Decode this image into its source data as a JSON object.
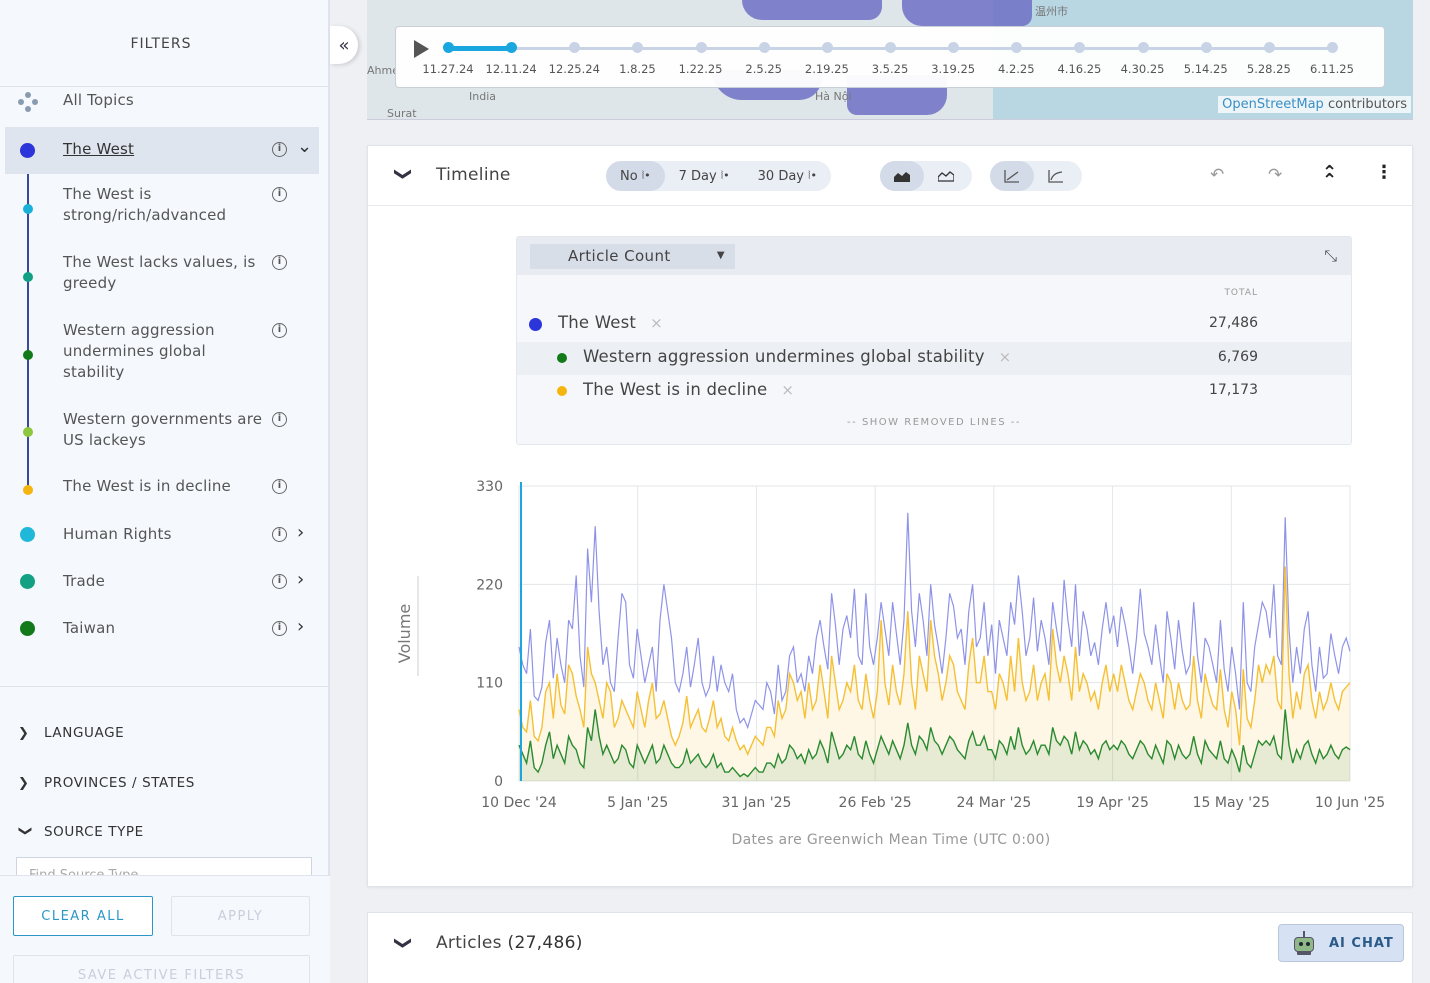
{
  "sidebar": {
    "title": "FILTERS",
    "collapse_icon": "«",
    "all_topics": "All Topics",
    "topics": [
      {
        "label": "The West",
        "color": "#2b35d9",
        "selected": true,
        "has_chevron": "down"
      },
      {
        "label": "The West is strong/rich/advanced",
        "color": "#1ab1d9",
        "sub": true
      },
      {
        "label": "The West lacks values, is greedy",
        "color": "#11a085",
        "sub": true
      },
      {
        "label": "Western aggression undermines global stability",
        "color": "#137a1a",
        "sub": true
      },
      {
        "label": "Western governments are US lackeys",
        "color": "#8dc63f",
        "sub": true
      },
      {
        "label": "The West is in decline",
        "color": "#f5b50f",
        "sub": true
      },
      {
        "label": "Human Rights",
        "color": "#1fb8d8",
        "has_chevron": "right"
      },
      {
        "label": "Trade",
        "color": "#13a083",
        "has_chevron": "right"
      },
      {
        "label": "Taiwan",
        "color": "#137a1a",
        "has_chevron": "right"
      }
    ],
    "info_glyph": "i",
    "sections": [
      {
        "label": "LANGUAGE",
        "expanded": false
      },
      {
        "label": "PROVINCES / STATES",
        "expanded": false
      },
      {
        "label": "SOURCE TYPE",
        "expanded": true
      }
    ],
    "source_type_placeholder": "Find Source Type",
    "clear_all": "CLEAR ALL",
    "apply": "APPLY",
    "save_active_filters": "SAVE ACTIVE FILTERS"
  },
  "map": {
    "attribution_link": "OpenStreetMap",
    "attribution_rest": " contributors",
    "labels": [
      "Ahme",
      "India",
      "Surat",
      "Hà Nội",
      "温州市"
    ],
    "playback": {
      "dates": [
        "11.27.24",
        "12.11.24",
        "12.25.24",
        "1.8.25",
        "1.22.25",
        "2.5.25",
        "2.19.25",
        "3.5.25",
        "3.19.25",
        "4.2.25",
        "4.16.25",
        "4.30.25",
        "5.14.25",
        "5.28.25",
        "6.11.25"
      ],
      "active_index": 1
    }
  },
  "timeline": {
    "title": "Timeline",
    "smoothing": [
      "No",
      "7 Day",
      "30 Day"
    ],
    "smoothing_selected": 0,
    "chart_type_icons": [
      "area-filled-icon",
      "area-outline-icon"
    ],
    "scale_icons": [
      "linear-scale-icon",
      "log-scale-icon"
    ],
    "metric": "Article Count",
    "total_label": "TOTAL",
    "legend": [
      {
        "name": "The West",
        "total": "27,486",
        "color": "#2b35d9"
      },
      {
        "name": "Western aggression undermines global stability",
        "total": "6,769",
        "color": "#137a1a"
      },
      {
        "name": "The West is in decline",
        "total": "17,173",
        "color": "#f5b50f"
      }
    ],
    "remove_glyph": "×",
    "show_removed": "-- SHOW REMOVED LINES --",
    "timezone_note": "Dates are Greenwich Mean Time (UTC 0:00)"
  },
  "chart_data": {
    "type": "line",
    "xlabel": "",
    "ylabel": "Volume",
    "ylim": [
      0,
      330
    ],
    "yticks": [
      0,
      110,
      220,
      330
    ],
    "xticks": [
      "10 Dec '24",
      "5 Jan '25",
      "31 Jan '25",
      "26 Feb '25",
      "24 Mar '25",
      "19 Apr '25",
      "15 May '25",
      "10 Jun '25"
    ],
    "x_range": [
      "2024-12-10",
      "2025-06-10"
    ],
    "series": [
      {
        "name": "The West",
        "color": "#8f93e8",
        "values": [
          150,
          130,
          120,
          170,
          95,
          90,
          105,
          155,
          180,
          115,
          160,
          130,
          110,
          180,
          170,
          230,
          140,
          105,
          260,
          200,
          285,
          190,
          130,
          150,
          110,
          100,
          160,
          210,
          200,
          130,
          115,
          170,
          140,
          110,
          130,
          150,
          100,
          180,
          220,
          190,
          160,
          110,
          100,
          120,
          150,
          105,
          130,
          160,
          110,
          95,
          105,
          140,
          100,
          130,
          110,
          100,
          120,
          80,
          65,
          70,
          60,
          75,
          90,
          85,
          80,
          110,
          100,
          75,
          130,
          90,
          100,
          140,
          150,
          110,
          120,
          100,
          140,
          120,
          160,
          180,
          150,
          125,
          210,
          175,
          130,
          170,
          185,
          160,
          215,
          140,
          130,
          210,
          150,
          130,
          160,
          200,
          170,
          140,
          200,
          165,
          130,
          180,
          300,
          190,
          150,
          210,
          180,
          140,
          220,
          175,
          150,
          120,
          160,
          210,
          195,
          160,
          170,
          130,
          190,
          220,
          150,
          160,
          200,
          140,
          175,
          120,
          180,
          160,
          140,
          200,
          175,
          230,
          190,
          140,
          160,
          205,
          145,
          180,
          160,
          130,
          200,
          170,
          145,
          225,
          180,
          150,
          220,
          140,
          190,
          170,
          140,
          155,
          130,
          170,
          200,
          165,
          185,
          150,
          195,
          175,
          150,
          120,
          160,
          215,
          165,
          150,
          130,
          175,
          140,
          110,
          190,
          160,
          125,
          180,
          145,
          120,
          130,
          200,
          140,
          110,
          160,
          150,
          130,
          110,
          180,
          125,
          100,
          150,
          120,
          80,
          200,
          110,
          100,
          150,
          175,
          200,
          190,
          160,
          220,
          140,
          130,
          295,
          170,
          110,
          150,
          120,
          170,
          190,
          130,
          100,
          150,
          115,
          120,
          165,
          140,
          120,
          150,
          160,
          145
        ]
      },
      {
        "name": "The West is in decline",
        "color": "#f5c034",
        "values": [
          80,
          60,
          55,
          90,
          50,
          45,
          60,
          100,
          110,
          70,
          120,
          85,
          75,
          130,
          120,
          95,
          80,
          60,
          150,
          120,
          110,
          90,
          70,
          110,
          100,
          60,
          70,
          90,
          80,
          70,
          60,
          100,
          80,
          60,
          90,
          110,
          70,
          75,
          90,
          70,
          50,
          40,
          50,
          65,
          95,
          60,
          70,
          80,
          60,
          55,
          70,
          90,
          60,
          70,
          50,
          45,
          60,
          45,
          35,
          40,
          30,
          40,
          50,
          45,
          40,
          60,
          60,
          50,
          90,
          70,
          80,
          120,
          110,
          90,
          100,
          70,
          110,
          80,
          90,
          130,
          100,
          70,
          140,
          110,
          80,
          90,
          110,
          100,
          130,
          90,
          80,
          120,
          90,
          70,
          100,
          180,
          110,
          85,
          130,
          100,
          85,
          120,
          190,
          110,
          80,
          140,
          120,
          100,
          180,
          140,
          120,
          90,
          110,
          140,
          130,
          100,
          90,
          80,
          130,
          160,
          110,
          110,
          140,
          100,
          100,
          80,
          120,
          110,
          90,
          140,
          100,
          160,
          110,
          90,
          100,
          130,
          90,
          110,
          120,
          90,
          170,
          130,
          110,
          140,
          120,
          90,
          150,
          100,
          120,
          110,
          90,
          100,
          80,
          110,
          130,
          100,
          120,
          100,
          130,
          110,
          90,
          80,
          100,
          120,
          110,
          90,
          80,
          110,
          90,
          70,
          120,
          110,
          80,
          110,
          90,
          80,
          85,
          140,
          90,
          70,
          120,
          100,
          85,
          80,
          125,
          80,
          60,
          100,
          80,
          40,
          125,
          70,
          60,
          90,
          130,
          110,
          130,
          120,
          140,
          90,
          80,
          240,
          120,
          70,
          100,
          80,
          120,
          130,
          90,
          70,
          100,
          80,
          90,
          110,
          90,
          80,
          100,
          105,
          110
        ]
      },
      {
        "name": "Western aggression undermines global stability",
        "color": "#2a8a30",
        "values": [
          40,
          30,
          20,
          45,
          15,
          10,
          20,
          40,
          55,
          25,
          40,
          30,
          20,
          50,
          40,
          35,
          20,
          15,
          60,
          45,
          80,
          50,
          30,
          40,
          30,
          20,
          25,
          40,
          35,
          20,
          15,
          40,
          30,
          20,
          30,
          40,
          20,
          25,
          40,
          30,
          20,
          15,
          15,
          20,
          35,
          20,
          25,
          30,
          20,
          15,
          20,
          30,
          15,
          20,
          10,
          10,
          15,
          10,
          5,
          8,
          5,
          10,
          15,
          10,
          10,
          20,
          20,
          15,
          30,
          20,
          25,
          40,
          35,
          25,
          30,
          20,
          35,
          25,
          30,
          45,
          35,
          20,
          55,
          40,
          25,
          30,
          40,
          35,
          50,
          30,
          25,
          45,
          30,
          20,
          35,
          50,
          40,
          30,
          45,
          35,
          25,
          40,
          65,
          40,
          30,
          50,
          45,
          35,
          60,
          45,
          40,
          30,
          40,
          50,
          45,
          35,
          30,
          25,
          45,
          55,
          40,
          40,
          50,
          35,
          35,
          25,
          45,
          40,
          30,
          50,
          35,
          60,
          40,
          30,
          35,
          45,
          30,
          40,
          40,
          30,
          60,
          45,
          40,
          50,
          45,
          30,
          55,
          35,
          45,
          40,
          30,
          35,
          25,
          40,
          45,
          35,
          40,
          35,
          45,
          40,
          30,
          25,
          35,
          45,
          40,
          30,
          25,
          40,
          30,
          20,
          45,
          40,
          25,
          40,
          30,
          25,
          30,
          50,
          30,
          20,
          45,
          35,
          30,
          25,
          45,
          25,
          20,
          35,
          25,
          10,
          40,
          20,
          15,
          30,
          45,
          40,
          45,
          40,
          50,
          30,
          25,
          80,
          40,
          20,
          35,
          25,
          40,
          45,
          30,
          20,
          35,
          25,
          30,
          40,
          30,
          25,
          35,
          38,
          35
        ]
      }
    ]
  },
  "articles": {
    "title": "Articles",
    "count": "(27,486)",
    "ai_chat": "AI CHAT"
  }
}
